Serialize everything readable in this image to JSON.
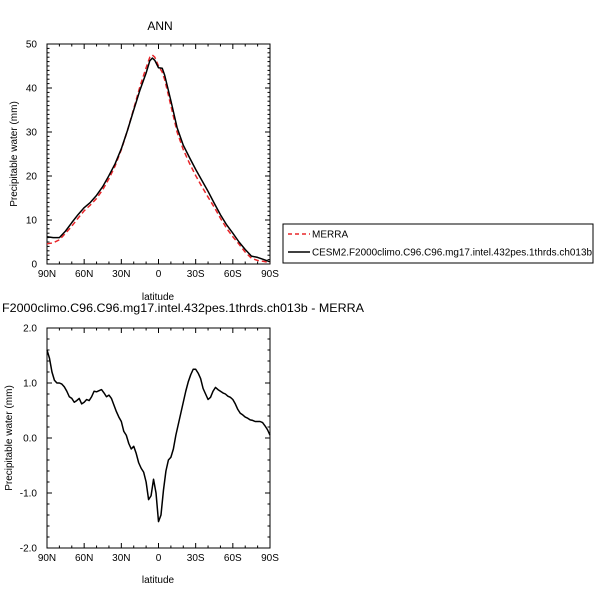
{
  "chart_data": [
    {
      "type": "line",
      "title": "ANN",
      "xlabel": "latitude",
      "ylabel": "Precipitable water (mm)",
      "x_tick_values": [
        90,
        60,
        30,
        0,
        -30,
        -60,
        -90
      ],
      "x_tick_labels": [
        "90N",
        "60N",
        "30N",
        "0",
        "30S",
        "60S",
        "90S"
      ],
      "y_tick_values": [
        0,
        10,
        20,
        30,
        40,
        50
      ],
      "y_tick_labels": [
        "0",
        "10",
        "20",
        "30",
        "40",
        "50"
      ],
      "xlim": [
        90,
        -90
      ],
      "ylim": [
        0,
        50
      ],
      "legend": {
        "placement": "right",
        "entries": [
          "MERRA",
          "CESM2.F2000climo.C96.C96.mg17.intel.432pes.1thrds.ch013b"
        ]
      },
      "series": [
        {
          "name": "MERRA",
          "color": "#e8262a",
          "dash": "dashed",
          "x": [
            90,
            85,
            80,
            75,
            70,
            65,
            60,
            55,
            50,
            45,
            40,
            35,
            30,
            25,
            20,
            15,
            10,
            7,
            5,
            3,
            0,
            -3,
            -5,
            -10,
            -15,
            -20,
            -25,
            -30,
            -35,
            -40,
            -45,
            -50,
            -55,
            -60,
            -65,
            -70,
            -75,
            -80,
            -85,
            -90
          ],
          "y": [
            4.6,
            4.8,
            5.5,
            7.0,
            8.6,
            10.4,
            12.1,
            13.4,
            14.9,
            16.9,
            19.4,
            22.3,
            26.0,
            30.4,
            35.3,
            40.3,
            44.6,
            47.0,
            47.5,
            47.0,
            45.0,
            43.6,
            41.9,
            36.0,
            30.0,
            26.0,
            22.9,
            20.1,
            17.6,
            15.2,
            12.9,
            10.4,
            8.1,
            6.2,
            4.5,
            2.7,
            1.3,
            0.8,
            0.6,
            0.3
          ]
        },
        {
          "name": "CESM2.F2000climo.C96.C96.mg17.intel.432pes.1thrds.ch013b",
          "color": "#000000",
          "dash": "solid",
          "x": [
            90,
            85,
            80,
            75,
            70,
            65,
            60,
            55,
            50,
            45,
            40,
            35,
            30,
            25,
            20,
            15,
            10,
            7,
            5,
            3,
            0,
            -3,
            -5,
            -10,
            -15,
            -20,
            -25,
            -30,
            -35,
            -40,
            -45,
            -50,
            -55,
            -60,
            -65,
            -70,
            -75,
            -80,
            -85,
            -90
          ],
          "y": [
            6.2,
            6.0,
            6.0,
            7.5,
            9.4,
            11.2,
            12.8,
            14.0,
            15.6,
            17.6,
            20.1,
            22.8,
            26.2,
            30.4,
            35.0,
            39.5,
            43.4,
            46.2,
            46.8,
            46.3,
            44.6,
            44.5,
            42.9,
            37.1,
            31.0,
            27.0,
            24.2,
            21.5,
            19.0,
            16.5,
            13.8,
            11.2,
            8.9,
            7.0,
            5.0,
            3.3,
            1.8,
            1.5,
            1.0,
            0.5
          ]
        }
      ]
    },
    {
      "type": "line",
      "title": "F2000climo.C96.C96.mg17.intel.432pes.1thrds.ch013b - MERRA",
      "xlabel": "latitude",
      "ylabel": "Precipitable water (mm)",
      "x_tick_values": [
        90,
        60,
        30,
        0,
        -30,
        -60,
        -90
      ],
      "x_tick_labels": [
        "90N",
        "60N",
        "30N",
        "0",
        "30S",
        "60S",
        "90S"
      ],
      "y_tick_values": [
        -2.0,
        -1.0,
        0.0,
        1.0,
        2.0
      ],
      "y_tick_labels": [
        "-2.0",
        "-1.0",
        "0.0",
        "1.0",
        "2.0"
      ],
      "xlim": [
        90,
        -90
      ],
      "ylim": [
        -2.0,
        2.0
      ],
      "series": [
        {
          "color": "#000000",
          "dash": "solid",
          "x": [
            90,
            88,
            86,
            84,
            82,
            80,
            78,
            76,
            74,
            72,
            70,
            68,
            66,
            64,
            62,
            60,
            58,
            56,
            54,
            52,
            50,
            48,
            46,
            44,
            42,
            40,
            38,
            36,
            34,
            32,
            30,
            28,
            26,
            24,
            22,
            20,
            18,
            16,
            14,
            12,
            10,
            8,
            6,
            4,
            2,
            0,
            -2,
            -4,
            -6,
            -8,
            -10,
            -12,
            -14,
            -16,
            -18,
            -20,
            -22,
            -24,
            -26,
            -28,
            -30,
            -32,
            -34,
            -36,
            -38,
            -40,
            -42,
            -44,
            -46,
            -48,
            -50,
            -52,
            -54,
            -56,
            -58,
            -60,
            -62,
            -64,
            -66,
            -68,
            -70,
            -72,
            -74,
            -76,
            -78,
            -80,
            -82,
            -84,
            -86,
            -88,
            -90
          ],
          "y": [
            1.6,
            1.45,
            1.2,
            1.05,
            1.0,
            1.0,
            0.98,
            0.93,
            0.85,
            0.75,
            0.72,
            0.65,
            0.68,
            0.72,
            0.62,
            0.65,
            0.7,
            0.68,
            0.75,
            0.85,
            0.84,
            0.86,
            0.88,
            0.82,
            0.75,
            0.78,
            0.72,
            0.6,
            0.48,
            0.38,
            0.3,
            0.12,
            0.05,
            -0.1,
            -0.2,
            -0.15,
            -0.28,
            -0.45,
            -0.55,
            -0.62,
            -0.8,
            -1.12,
            -1.05,
            -0.75,
            -1.0,
            -1.52,
            -1.4,
            -0.95,
            -0.6,
            -0.4,
            -0.35,
            -0.2,
            0.05,
            0.25,
            0.45,
            0.65,
            0.85,
            1.02,
            1.15,
            1.25,
            1.25,
            1.18,
            1.08,
            0.9,
            0.8,
            0.7,
            0.74,
            0.85,
            0.92,
            0.88,
            0.85,
            0.82,
            0.8,
            0.76,
            0.74,
            0.7,
            0.62,
            0.52,
            0.45,
            0.42,
            0.38,
            0.36,
            0.33,
            0.32,
            0.3,
            0.3,
            0.3,
            0.28,
            0.22,
            0.15,
            0.05
          ]
        }
      ]
    }
  ]
}
